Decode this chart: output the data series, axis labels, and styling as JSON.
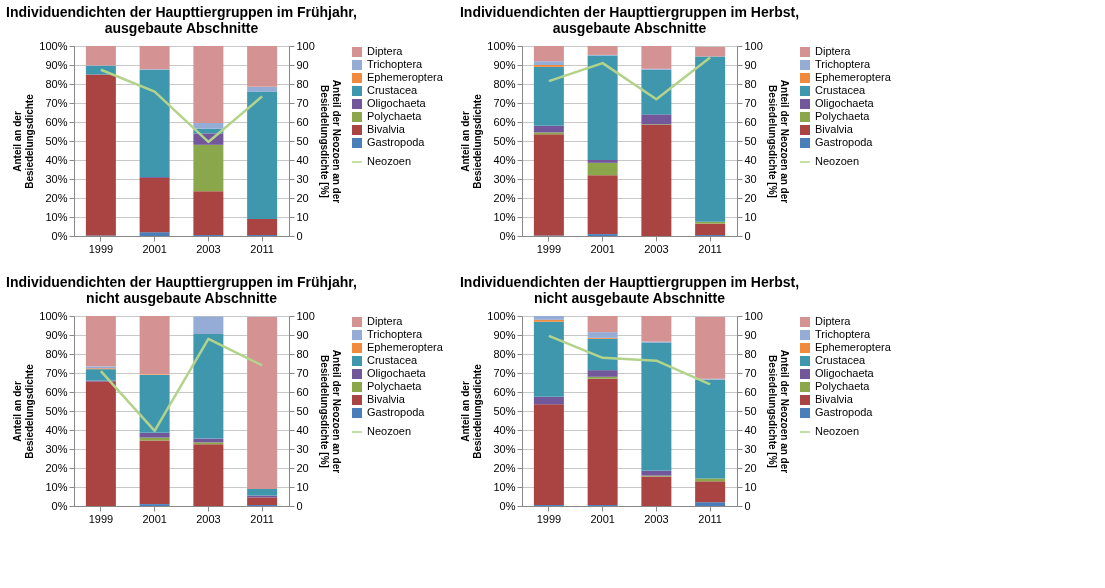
{
  "chart_data": [
    {
      "type": "bar",
      "stacked": true,
      "title": "Individuendichten der Haupttiergruppen im Frühjahr,\nausgebaute Abschnitte",
      "ylabel": "Anteil an der Besiedelungsdichte",
      "y2label": "Anteil der Neozoen an der Besiedelungsdichte [%]",
      "categories": [
        "1999",
        "2001",
        "2003",
        "2011"
      ],
      "ylim": [
        0,
        100
      ],
      "yticks": [
        {
          "value": 0,
          "label": "0%"
        },
        {
          "value": 10,
          "label": "10%"
        },
        {
          "value": 20,
          "label": "20%"
        },
        {
          "value": 30,
          "label": "30%"
        },
        {
          "value": 40,
          "label": "40%"
        },
        {
          "value": 50,
          "label": "50%"
        },
        {
          "value": 60,
          "label": "60%"
        },
        {
          "value": 70,
          "label": "70%"
        },
        {
          "value": 80,
          "label": "80%"
        },
        {
          "value": 90,
          "label": "90%"
        },
        {
          "value": 100,
          "label": "100%"
        }
      ],
      "y2lim": [
        0,
        100
      ],
      "y2ticks": [
        0,
        10,
        20,
        30,
        40,
        50,
        60,
        70,
        80,
        90,
        100
      ],
      "grid": "y",
      "legend": "right",
      "series": [
        {
          "name": "Gastropoda",
          "color": "#4a7ebb",
          "values": [
            0.3,
            2,
            0.5,
            0.5
          ]
        },
        {
          "name": "Bivalvia",
          "color": "#a94442",
          "values": [
            84.7,
            28.5,
            23,
            8.5
          ]
        },
        {
          "name": "Polychaeta",
          "color": "#8aa84b",
          "values": [
            0,
            0,
            24.5,
            0
          ]
        },
        {
          "name": "Oligochaeta",
          "color": "#72589a",
          "values": [
            0,
            0.5,
            6,
            0
          ]
        },
        {
          "name": "Crustacea",
          "color": "#3f97ae",
          "values": [
            4.5,
            56.5,
            2.5,
            67
          ]
        },
        {
          "name": "Ephemeroptera",
          "color": "#f08a3c",
          "values": [
            0,
            0,
            0,
            0
          ]
        },
        {
          "name": "Trichoptera",
          "color": "#95acd6",
          "values": [
            0.3,
            0.3,
            3,
            2.5
          ]
        },
        {
          "name": "Diptera",
          "color": "#d59292",
          "values": [
            10.2,
            12.2,
            40.5,
            21.5
          ]
        },
        {
          "name": "Neozoen",
          "color": "#b3d38b",
          "type": "line",
          "axis": "y2",
          "values": [
            87.5,
            76,
            49.5,
            73.5
          ]
        }
      ]
    },
    {
      "type": "bar",
      "stacked": true,
      "title": "Individuendichten der Haupttiergruppen im Herbst,\nausgebaute Abschnitte",
      "ylabel": "Anteil an der Besiedelungsdichte",
      "y2label": "Anteil der Neozoen an der Besiedelungsdichte [%]",
      "categories": [
        "1999",
        "2001",
        "2003",
        "2011"
      ],
      "ylim": [
        0,
        100
      ],
      "yticks": [
        {
          "value": 0,
          "label": "0%"
        },
        {
          "value": 10,
          "label": "10%"
        },
        {
          "value": 20,
          "label": "20%"
        },
        {
          "value": 30,
          "label": "30%"
        },
        {
          "value": 40,
          "label": "40%"
        },
        {
          "value": 50,
          "label": "50%"
        },
        {
          "value": 60,
          "label": "60%"
        },
        {
          "value": 70,
          "label": "70%"
        },
        {
          "value": 80,
          "label": "80%"
        },
        {
          "value": 90,
          "label": "90%"
        },
        {
          "value": 100,
          "label": "100%"
        }
      ],
      "y2lim": [
        0,
        100
      ],
      "y2ticks": [
        0,
        10,
        20,
        30,
        40,
        50,
        60,
        70,
        80,
        90,
        100
      ],
      "grid": "y",
      "legend": "right",
      "series": [
        {
          "name": "Gastropoda",
          "color": "#4a7ebb",
          "values": [
            0.3,
            1,
            0,
            0.5
          ]
        },
        {
          "name": "Bivalvia",
          "color": "#a94442",
          "values": [
            53.2,
            31,
            58.5,
            6
          ]
        },
        {
          "name": "Polychaeta",
          "color": "#8aa84b",
          "values": [
            1,
            6.5,
            0.3,
            1
          ]
        },
        {
          "name": "Oligochaeta",
          "color": "#72589a",
          "values": [
            3.5,
            1.5,
            5.2,
            0
          ]
        },
        {
          "name": "Crustacea",
          "color": "#3f97ae",
          "values": [
            31,
            55,
            23.5,
            87
          ]
        },
        {
          "name": "Ephemeroptera",
          "color": "#f08a3c",
          "values": [
            1,
            0,
            0,
            null
          ]
        },
        {
          "name": "Trichoptera",
          "color": "#95acd6",
          "values": [
            2,
            0.3,
            0.5,
            0
          ]
        },
        {
          "name": "Diptera",
          "color": "#d59292",
          "values": [
            8,
            4.7,
            12,
            5
          ]
        },
        {
          "name": "Neozoen",
          "color": "#b3d38b",
          "type": "line",
          "axis": "y2",
          "values": [
            81.5,
            91,
            72,
            94
          ]
        }
      ]
    },
    {
      "type": "bar",
      "stacked": true,
      "title": "Individuendichten der Haupttiergruppen im Frühjahr,\nnicht ausgebaute Abschnitte",
      "ylabel": "Anteil an der Besiedelungsdichte",
      "y2label": "Anteil der Neozoen an der Besiedelungsdichte [%]",
      "categories": [
        "1999",
        "2001",
        "2003",
        "2011"
      ],
      "ylim": [
        0,
        100
      ],
      "yticks": [
        {
          "value": 0,
          "label": "0%"
        },
        {
          "value": 10,
          "label": "10%"
        },
        {
          "value": 20,
          "label": "20%"
        },
        {
          "value": 30,
          "label": "30%"
        },
        {
          "value": 40,
          "label": "40%"
        },
        {
          "value": 50,
          "label": "50%"
        },
        {
          "value": 60,
          "label": "60%"
        },
        {
          "value": 70,
          "label": "70%"
        },
        {
          "value": 80,
          "label": "80%"
        },
        {
          "value": 90,
          "label": "90%"
        },
        {
          "value": 100,
          "label": "100%"
        }
      ],
      "y2lim": [
        0,
        100
      ],
      "y2ticks": [
        0,
        10,
        20,
        30,
        40,
        50,
        60,
        70,
        80,
        90,
        100
      ],
      "grid": "y",
      "legend": "right",
      "series": [
        {
          "name": "Gastropoda",
          "color": "#4a7ebb",
          "values": [
            0,
            1,
            0,
            0.5
          ]
        },
        {
          "name": "Bivalvia",
          "color": "#a94442",
          "values": [
            65.5,
            33.5,
            32.5,
            4
          ]
        },
        {
          "name": "Polychaeta",
          "color": "#8aa84b",
          "values": [
            0,
            1.5,
            1,
            null
          ]
        },
        {
          "name": "Oligochaeta",
          "color": "#72589a",
          "values": [
            0.5,
            2.5,
            2,
            1
          ]
        },
        {
          "name": "Crustacea",
          "color": "#3f97ae",
          "values": [
            6,
            30.5,
            55,
            3.5
          ]
        },
        {
          "name": "Ephemeroptera",
          "color": "#f08a3c",
          "values": [
            0.5,
            0.3,
            null,
            0
          ]
        },
        {
          "name": "Trichoptera",
          "color": "#95acd6",
          "values": [
            1,
            0,
            9.2,
            0
          ]
        },
        {
          "name": "Diptera",
          "color": "#d59292",
          "values": [
            26.5,
            30.7,
            0,
            90.5
          ]
        },
        {
          "name": "Neozoen",
          "color": "#b3d38b",
          "type": "line",
          "axis": "y2",
          "values": [
            71,
            39.5,
            88,
            74
          ]
        }
      ]
    },
    {
      "type": "bar",
      "stacked": true,
      "title": "Individuendichten der Haupttiergruppen im Herbst,\nnicht ausgebaute Abschnitte",
      "ylabel": "Anteil an der Besiedelungsdichte",
      "y2label": "Anteil der Neozoen an der Besiedelungsdichte [%]",
      "categories": [
        "1999",
        "2001",
        "2003",
        "2011"
      ],
      "ylim": [
        0,
        100
      ],
      "yticks": [
        {
          "value": 0,
          "label": "0%"
        },
        {
          "value": 10,
          "label": "10%"
        },
        {
          "value": 20,
          "label": "20%"
        },
        {
          "value": 30,
          "label": "30%"
        },
        {
          "value": 40,
          "label": "40%"
        },
        {
          "value": 50,
          "label": "50%"
        },
        {
          "value": 60,
          "label": "60%"
        },
        {
          "value": 70,
          "label": "70%"
        },
        {
          "value": 80,
          "label": "80%"
        },
        {
          "value": 90,
          "label": "90%"
        },
        {
          "value": 100,
          "label": "100%"
        }
      ],
      "y2lim": [
        0,
        100
      ],
      "y2ticks": [
        0,
        10,
        20,
        30,
        40,
        50,
        60,
        70,
        80,
        90,
        100
      ],
      "grid": "y",
      "legend": "right",
      "series": [
        {
          "name": "Gastropoda",
          "color": "#4a7ebb",
          "values": [
            0.5,
            0.5,
            0,
            2
          ]
        },
        {
          "name": "Bivalvia",
          "color": "#a94442",
          "values": [
            53,
            66.5,
            15.5,
            11
          ]
        },
        {
          "name": "Polychaeta",
          "color": "#8aa84b",
          "values": [
            0,
            1,
            0.5,
            1.5
          ]
        },
        {
          "name": "Oligochaeta",
          "color": "#72589a",
          "values": [
            4,
            3.5,
            2.5,
            null
          ]
        },
        {
          "name": "Crustacea",
          "color": "#3f97ae",
          "values": [
            39.5,
            16.5,
            67.5,
            52
          ]
        },
        {
          "name": "Ephemeroptera",
          "color": "#f08a3c",
          "values": [
            1,
            0.5,
            0,
            0
          ]
        },
        {
          "name": "Trichoptera",
          "color": "#95acd6",
          "values": [
            2,
            3,
            0.5,
            0.5
          ]
        },
        {
          "name": "Diptera",
          "color": "#d59292",
          "values": [
            0,
            8.5,
            13.5,
            32.5
          ]
        },
        {
          "name": "Neozoen",
          "color": "#b3d38b",
          "type": "line",
          "axis": "y2",
          "values": [
            89.5,
            78,
            76.5,
            64
          ]
        }
      ]
    }
  ]
}
